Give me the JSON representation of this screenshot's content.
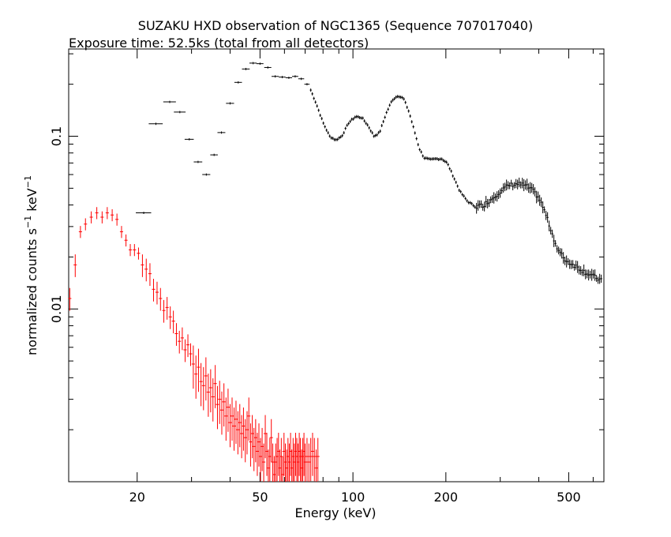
{
  "chart_data": {
    "type": "scatter",
    "title": "SUZAKU HXD observation of NGC1365 (Sequence 707017040)",
    "subtitle": "Exposure time: 52.5ks (total from all detectors)",
    "xlabel": "Energy (keV)",
    "ylabel_main": "normalized counts s",
    "ylabel_sup1": "−1",
    "ylabel_mid": " keV",
    "ylabel_sup2": "−1",
    "x_scale": "log",
    "y_scale": "log",
    "xlim": [
      12,
      650
    ],
    "ylim": [
      0.001,
      0.32
    ],
    "x_ticks": [
      20,
      50,
      100,
      200,
      500
    ],
    "x_tick_labels": [
      "20",
      "50",
      "100",
      "200",
      "500"
    ],
    "y_ticks": [
      0.01,
      0.1
    ],
    "y_tick_labels": [
      "0.01",
      "0.1"
    ],
    "grid": false,
    "series": [
      {
        "color": "#000000",
        "points": [
          {
            "x": 21,
            "y": 0.036,
            "xerr": 1.2
          },
          {
            "x": 23,
            "y": 0.118,
            "xerr": 1.2
          },
          {
            "x": 25.5,
            "y": 0.158,
            "xerr": 1.2
          },
          {
            "x": 27.5,
            "y": 0.138,
            "xerr": 1.2
          },
          {
            "x": 29.5,
            "y": 0.096,
            "xerr": 1.0
          },
          {
            "x": 31.5,
            "y": 0.071,
            "xerr": 1.0
          },
          {
            "x": 33.5,
            "y": 0.06,
            "xerr": 1.0
          },
          {
            "x": 35.5,
            "y": 0.078,
            "xerr": 1.0
          },
          {
            "x": 37.5,
            "y": 0.105,
            "xerr": 1.1
          },
          {
            "x": 40,
            "y": 0.155,
            "xerr": 1.2
          },
          {
            "x": 42.5,
            "y": 0.205,
            "xerr": 1.2
          },
          {
            "x": 45,
            "y": 0.245,
            "xerr": 1.3
          },
          {
            "x": 47.5,
            "y": 0.265,
            "xerr": 1.3
          },
          {
            "x": 50,
            "y": 0.263,
            "xerr": 1.3
          },
          {
            "x": 53,
            "y": 0.25,
            "xerr": 1.4
          },
          {
            "x": 56,
            "y": 0.222,
            "xerr": 1.5
          },
          {
            "x": 59,
            "y": 0.22,
            "xerr": 1.5
          },
          {
            "x": 62,
            "y": 0.218,
            "xerr": 1.5
          },
          {
            "x": 65,
            "y": 0.222,
            "xerr": 1.5
          },
          {
            "x": 68,
            "y": 0.215,
            "xerr": 1.5
          },
          {
            "x": 71,
            "y": 0.2,
            "xerr": 1.4
          }
        ],
        "curve": [
          [
            73,
            0.185
          ],
          [
            76,
            0.155
          ],
          [
            80,
            0.12
          ],
          [
            84,
            0.1
          ],
          [
            88,
            0.095
          ],
          [
            92,
            0.1
          ],
          [
            97,
            0.12
          ],
          [
            102,
            0.13
          ],
          [
            107,
            0.128
          ],
          [
            112,
            0.115
          ],
          [
            117,
            0.1
          ],
          [
            122,
            0.105
          ],
          [
            128,
            0.135
          ],
          [
            134,
            0.162
          ],
          [
            140,
            0.172
          ],
          [
            146,
            0.165
          ],
          [
            152,
            0.138
          ],
          [
            158,
            0.108
          ],
          [
            164,
            0.085
          ],
          [
            170,
            0.075
          ],
          [
            178,
            0.073
          ],
          [
            186,
            0.074
          ],
          [
            194,
            0.074
          ],
          [
            202,
            0.07
          ],
          [
            212,
            0.058
          ],
          [
            222,
            0.048
          ],
          [
            235,
            0.042
          ],
          [
            250,
            0.039
          ],
          [
            265,
            0.04
          ],
          [
            280,
            0.043
          ],
          [
            300,
            0.048
          ],
          [
            320,
            0.052
          ],
          [
            340,
            0.053
          ],
          [
            360,
            0.052
          ],
          [
            380,
            0.049
          ],
          [
            400,
            0.044
          ],
          [
            420,
            0.036
          ],
          [
            440,
            0.028
          ],
          [
            460,
            0.022
          ],
          [
            490,
            0.019
          ],
          [
            520,
            0.018
          ],
          [
            560,
            0.0165
          ],
          [
            600,
            0.0155
          ],
          [
            640,
            0.0145
          ]
        ]
      },
      {
        "color": "#ff0000",
        "points": [
          {
            "x": 12.1,
            "y": 0.0115
          },
          {
            "x": 12.6,
            "y": 0.018
          },
          {
            "x": 13.1,
            "y": 0.028
          },
          {
            "x": 13.6,
            "y": 0.031
          },
          {
            "x": 14.2,
            "y": 0.034
          },
          {
            "x": 14.8,
            "y": 0.036
          },
          {
            "x": 15.4,
            "y": 0.034
          },
          {
            "x": 16,
            "y": 0.036
          },
          {
            "x": 16.6,
            "y": 0.035
          },
          {
            "x": 17.2,
            "y": 0.033
          },
          {
            "x": 17.8,
            "y": 0.028
          },
          {
            "x": 18.4,
            "y": 0.025
          },
          {
            "x": 19,
            "y": 0.022
          },
          {
            "x": 19.6,
            "y": 0.022
          },
          {
            "x": 20.2,
            "y": 0.021
          },
          {
            "x": 20.8,
            "y": 0.018
          },
          {
            "x": 21.4,
            "y": 0.017
          },
          {
            "x": 22,
            "y": 0.016
          },
          {
            "x": 22.6,
            "y": 0.013
          },
          {
            "x": 23.2,
            "y": 0.0125
          },
          {
            "x": 23.8,
            "y": 0.0115
          },
          {
            "x": 24.4,
            "y": 0.0098
          },
          {
            "x": 25,
            "y": 0.0102
          },
          {
            "x": 25.6,
            "y": 0.009
          },
          {
            "x": 26.2,
            "y": 0.0085
          },
          {
            "x": 26.8,
            "y": 0.0072
          },
          {
            "x": 27.4,
            "y": 0.0065
          },
          {
            "x": 28,
            "y": 0.0068
          },
          {
            "x": 28.6,
            "y": 0.0058
          },
          {
            "x": 29.2,
            "y": 0.0062
          },
          {
            "x": 29.8,
            "y": 0.0055
          },
          {
            "x": 30.4,
            "y": 0.0048
          },
          {
            "x": 31,
            "y": 0.0042
          },
          {
            "x": 31.6,
            "y": 0.0046
          },
          {
            "x": 32.2,
            "y": 0.0038
          },
          {
            "x": 32.8,
            "y": 0.0036
          },
          {
            "x": 33.4,
            "y": 0.0041
          },
          {
            "x": 34,
            "y": 0.0033
          },
          {
            "x": 34.6,
            "y": 0.0035
          },
          {
            "x": 35.2,
            "y": 0.0031
          },
          {
            "x": 35.8,
            "y": 0.0037
          },
          {
            "x": 36.4,
            "y": 0.0028
          },
          {
            "x": 37,
            "y": 0.003
          },
          {
            "x": 37.6,
            "y": 0.0026
          },
          {
            "x": 38.2,
            "y": 0.0029
          },
          {
            "x": 38.8,
            "y": 0.0024
          },
          {
            "x": 39.4,
            "y": 0.0027
          },
          {
            "x": 40,
            "y": 0.0022
          },
          {
            "x": 40.6,
            "y": 0.0024
          },
          {
            "x": 41.2,
            "y": 0.0021
          },
          {
            "x": 41.8,
            "y": 0.0023
          },
          {
            "x": 42.4,
            "y": 0.002
          },
          {
            "x": 43,
            "y": 0.0022
          },
          {
            "x": 43.6,
            "y": 0.0019
          },
          {
            "x": 44.2,
            "y": 0.0021
          },
          {
            "x": 44.8,
            "y": 0.0018
          },
          {
            "x": 45.4,
            "y": 0.002
          },
          {
            "x": 46,
            "y": 0.0024
          },
          {
            "x": 46.6,
            "y": 0.0017
          },
          {
            "x": 47.2,
            "y": 0.0019
          },
          {
            "x": 47.8,
            "y": 0.0016
          },
          {
            "x": 48.4,
            "y": 0.0018
          },
          {
            "x": 49,
            "y": 0.0015
          },
          {
            "x": 49.6,
            "y": 0.0017
          },
          {
            "x": 50.2,
            "y": 0.0014
          },
          {
            "x": 50.8,
            "y": 0.0016
          },
          {
            "x": 51.4,
            "y": 0.0013
          },
          {
            "x": 52,
            "y": 0.0019
          },
          {
            "x": 52.6,
            "y": 0.0015
          },
          {
            "x": 53.2,
            "y": 0.0012
          },
          {
            "x": 53.8,
            "y": 0.0014
          },
          {
            "x": 54.4,
            "y": 0.0018
          },
          {
            "x": 55,
            "y": 0.0013
          },
          {
            "x": 55.6,
            "y": 0.0011
          },
          {
            "x": 56.2,
            "y": 0.0013
          },
          {
            "x": 56.8,
            "y": 0.0014
          },
          {
            "x": 57.4,
            "y": 0.0015
          },
          {
            "x": 58,
            "y": 0.0012
          },
          {
            "x": 58.6,
            "y": 0.0014
          },
          {
            "x": 59.2,
            "y": 0.0011
          },
          {
            "x": 59.8,
            "y": 0.0015
          },
          {
            "x": 60.4,
            "y": 0.0013
          },
          {
            "x": 61,
            "y": 0.0012
          },
          {
            "x": 61.6,
            "y": 0.0014
          },
          {
            "x": 62.2,
            "y": 0.0013
          },
          {
            "x": 62.8,
            "y": 0.0015
          },
          {
            "x": 63.4,
            "y": 0.0012
          },
          {
            "x": 64,
            "y": 0.0014
          },
          {
            "x": 64.6,
            "y": 0.0013
          },
          {
            "x": 65.2,
            "y": 0.0015
          },
          {
            "x": 65.8,
            "y": 0.0014
          },
          {
            "x": 66.4,
            "y": 0.0013
          },
          {
            "x": 67,
            "y": 0.0015
          },
          {
            "x": 67.6,
            "y": 0.0014
          },
          {
            "x": 68.2,
            "y": 0.0012
          },
          {
            "x": 68.8,
            "y": 0.0014
          },
          {
            "x": 69.4,
            "y": 0.0015
          },
          {
            "x": 70,
            "y": 0.0013
          },
          {
            "x": 71,
            "y": 0.0014
          },
          {
            "x": 72,
            "y": 0.0013
          },
          {
            "x": 73,
            "y": 0.0014
          },
          {
            "x": 74,
            "y": 0.0015
          },
          {
            "x": 75,
            "y": 0.0014
          },
          {
            "x": 76,
            "y": 0.0012
          },
          {
            "x": 77,
            "y": 0.0014
          }
        ]
      }
    ]
  }
}
